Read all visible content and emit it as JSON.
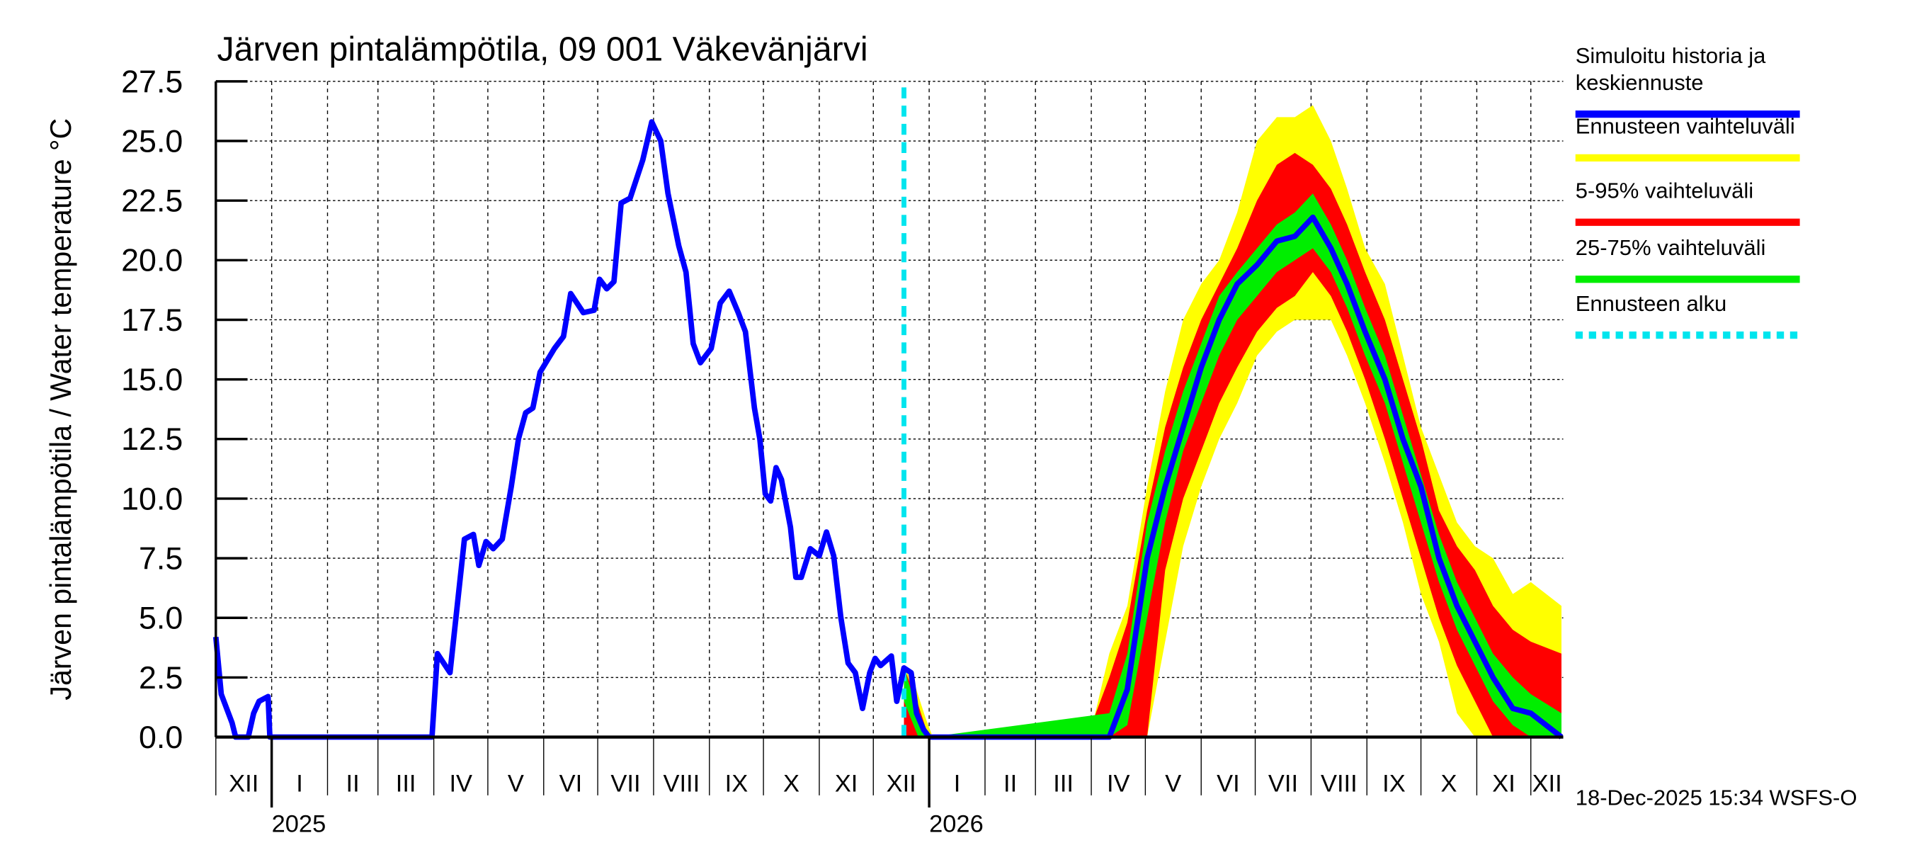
{
  "chart_data": {
    "type": "area",
    "title": "Järven pintalämpötila, 09 001 Väkevänjärvi",
    "ylabel": "Järven pintalämpötila / Water temperature °C",
    "xlabel": "",
    "x_unit": "days since 2024-12-01",
    "xlim": [
      0,
      748
    ],
    "ylim": [
      0,
      27.5
    ],
    "yticks": [
      "0.0",
      "2.5",
      "5.0",
      "7.5",
      "10.0",
      "12.5",
      "15.0",
      "17.5",
      "20.0",
      "22.5",
      "25.0",
      "27.5"
    ],
    "grid": true,
    "months": [
      "XII",
      "I",
      "II",
      "III",
      "IV",
      "V",
      "VI",
      "VII",
      "VIII",
      "IX",
      "X",
      "XI",
      "XII",
      "I",
      "II",
      "III",
      "IV",
      "V",
      "VI",
      "VII",
      "VIII",
      "IX",
      "X",
      "XI",
      "XII"
    ],
    "years": [
      "2025",
      "2026"
    ],
    "forecast_start_day": 382,
    "legend_position": "right",
    "legend": [
      {
        "label_line1": "Simuloitu historia ja",
        "label_line2": "keskiennuste",
        "color": "#0000ff",
        "style": "solid"
      },
      {
        "label_line1": "Ennusteen vaihteluväli",
        "color": "#ffff00",
        "style": "solid"
      },
      {
        "label_line1": "5-95% vaihteluväli",
        "color": "#ff0000",
        "style": "solid"
      },
      {
        "label_line1": "25-75% vaihteluväli",
        "color": "#00ee00",
        "style": "solid"
      },
      {
        "label_line1": "Ennusteen alku",
        "color": "#00e5ee",
        "style": "dotted"
      }
    ],
    "history": [
      [
        0,
        4.2
      ],
      [
        3,
        1.8
      ],
      [
        9,
        0.6
      ],
      [
        11,
        0
      ],
      [
        18,
        0
      ],
      [
        21,
        1
      ],
      [
        24,
        1.5
      ],
      [
        29,
        1.7
      ],
      [
        30,
        0
      ],
      [
        120,
        0
      ],
      [
        123,
        3.5
      ],
      [
        130,
        2.7
      ],
      [
        138,
        8.3
      ],
      [
        143,
        8.5
      ],
      [
        146,
        7.2
      ],
      [
        150,
        8.2
      ],
      [
        154,
        7.9
      ],
      [
        159,
        8.3
      ],
      [
        164,
        10.5
      ],
      [
        168,
        12.5
      ],
      [
        172,
        13.6
      ],
      [
        176,
        13.8
      ],
      [
        180,
        15.3
      ],
      [
        188,
        16.3
      ],
      [
        193,
        16.8
      ],
      [
        197,
        18.6
      ],
      [
        204,
        17.8
      ],
      [
        210,
        17.9
      ],
      [
        213,
        19.2
      ],
      [
        217,
        18.8
      ],
      [
        221,
        19.1
      ],
      [
        225,
        22.4
      ],
      [
        230,
        22.6
      ],
      [
        237,
        24.2
      ],
      [
        242,
        25.8
      ],
      [
        247,
        25
      ],
      [
        251,
        22.8
      ],
      [
        257,
        20.6
      ],
      [
        261,
        19.5
      ],
      [
        265,
        16.5
      ],
      [
        269,
        15.7
      ],
      [
        275,
        16.3
      ],
      [
        280,
        18.2
      ],
      [
        285,
        18.7
      ],
      [
        290,
        17.8
      ],
      [
        294,
        17
      ],
      [
        299,
        13.8
      ],
      [
        302,
        12.5
      ],
      [
        305,
        10.2
      ],
      [
        308,
        9.9
      ],
      [
        311,
        11.3
      ],
      [
        314,
        10.8
      ],
      [
        319,
        8.8
      ],
      [
        322,
        6.7
      ],
      [
        325,
        6.7
      ],
      [
        330,
        7.9
      ],
      [
        335,
        7.6
      ],
      [
        339,
        8.6
      ],
      [
        343,
        7.6
      ],
      [
        347,
        5.0
      ],
      [
        351,
        3.1
      ],
      [
        355,
        2.7
      ],
      [
        359,
        1.2
      ],
      [
        363,
        2.7
      ],
      [
        366,
        3.3
      ],
      [
        369,
        3.0
      ],
      [
        375,
        3.4
      ],
      [
        378,
        1.5
      ],
      [
        382,
        2.9
      ],
      [
        386,
        2.7
      ],
      [
        389,
        1.0
      ],
      [
        393,
        0.3
      ],
      [
        396,
        0
      ]
    ],
    "median": [
      [
        396,
        0
      ],
      [
        496,
        0
      ],
      [
        506,
        2
      ],
      [
        517,
        7.5
      ],
      [
        527,
        10.5
      ],
      [
        537,
        13
      ],
      [
        547,
        15.5
      ],
      [
        557,
        17.5
      ],
      [
        567,
        19
      ],
      [
        578,
        19.8
      ],
      [
        589,
        20.8
      ],
      [
        599,
        21
      ],
      [
        609,
        21.8
      ],
      [
        619,
        20.5
      ],
      [
        628,
        19
      ],
      [
        638,
        17
      ],
      [
        649,
        15
      ],
      [
        659,
        12.5
      ],
      [
        669,
        10.5
      ],
      [
        679,
        7.5
      ],
      [
        689,
        5.5
      ],
      [
        699,
        4
      ],
      [
        709,
        2.5
      ],
      [
        720,
        1.2
      ],
      [
        730,
        1
      ],
      [
        747,
        0
      ]
    ],
    "band_min_max": [
      [
        382,
        0,
        2.9
      ],
      [
        388,
        0,
        2.2
      ],
      [
        394,
        0,
        0.8
      ],
      [
        398,
        0,
        0
      ],
      [
        486,
        0,
        0.3
      ],
      [
        496,
        0,
        3.5
      ],
      [
        506,
        0,
        5.5
      ],
      [
        517,
        0,
        10.5
      ],
      [
        527,
        4,
        14.5
      ],
      [
        537,
        8,
        17.5
      ],
      [
        547,
        10.5,
        19
      ],
      [
        557,
        12.5,
        20
      ],
      [
        567,
        14,
        22
      ],
      [
        578,
        16,
        25
      ],
      [
        589,
        17,
        26
      ],
      [
        599,
        17.5,
        26
      ],
      [
        609,
        17.5,
        26.5
      ],
      [
        619,
        17.5,
        25
      ],
      [
        628,
        16,
        23
      ],
      [
        638,
        14,
        20.5
      ],
      [
        649,
        11.5,
        19
      ],
      [
        659,
        9,
        16
      ],
      [
        669,
        6,
        13
      ],
      [
        679,
        4,
        11
      ],
      [
        689,
        1,
        9
      ],
      [
        699,
        0,
        8
      ],
      [
        709,
        0,
        7.5
      ],
      [
        720,
        0,
        6
      ],
      [
        730,
        0,
        6.5
      ],
      [
        747,
        0,
        5.5
      ]
    ],
    "band_5_95": [
      [
        382,
        0,
        2.9
      ],
      [
        388,
        0,
        1.8
      ],
      [
        394,
        0,
        0.4
      ],
      [
        396,
        0,
        0
      ],
      [
        486,
        0,
        0.5
      ],
      [
        496,
        0,
        2.5
      ],
      [
        506,
        0,
        4.8
      ],
      [
        517,
        0,
        9.5
      ],
      [
        527,
        7,
        13
      ],
      [
        537,
        10,
        15.5
      ],
      [
        547,
        12,
        17.5
      ],
      [
        557,
        14,
        19
      ],
      [
        567,
        15.5,
        20.5
      ],
      [
        578,
        17,
        22.5
      ],
      [
        589,
        18,
        24
      ],
      [
        599,
        18.5,
        24.5
      ],
      [
        609,
        19.5,
        24
      ],
      [
        619,
        18.5,
        23
      ],
      [
        628,
        17,
        21.5
      ],
      [
        638,
        15,
        19.5
      ],
      [
        649,
        12.5,
        17.5
      ],
      [
        659,
        10,
        15
      ],
      [
        669,
        7.5,
        12.5
      ],
      [
        679,
        5,
        9.5
      ],
      [
        689,
        3,
        8
      ],
      [
        699,
        1.5,
        7
      ],
      [
        709,
        0,
        5.5
      ],
      [
        720,
        0,
        4.5
      ],
      [
        730,
        0,
        4
      ],
      [
        747,
        0,
        3.5
      ]
    ],
    "band_25_75": [
      [
        382,
        1.5,
        2.9
      ],
      [
        390,
        0,
        1
      ],
      [
        396,
        0,
        0
      ],
      [
        496,
        0,
        1.0
      ],
      [
        506,
        0.5,
        3.5
      ],
      [
        517,
        5,
        9
      ],
      [
        527,
        9,
        12
      ],
      [
        537,
        12,
        14.5
      ],
      [
        547,
        14,
        16.5
      ],
      [
        557,
        16,
        18.5
      ],
      [
        567,
        17.5,
        19.5
      ],
      [
        578,
        18.5,
        20.5
      ],
      [
        589,
        19.5,
        21.5
      ],
      [
        599,
        20,
        22
      ],
      [
        609,
        20.5,
        22.8
      ],
      [
        619,
        19.5,
        21.5
      ],
      [
        628,
        18,
        20
      ],
      [
        638,
        16,
        18
      ],
      [
        649,
        14,
        16
      ],
      [
        659,
        11.5,
        13.5
      ],
      [
        669,
        9,
        11
      ],
      [
        679,
        6.5,
        8.5
      ],
      [
        689,
        4.5,
        6.5
      ],
      [
        699,
        3,
        5
      ],
      [
        709,
        1.5,
        3.5
      ],
      [
        720,
        0.5,
        2.5
      ],
      [
        730,
        0,
        1.8
      ],
      [
        747,
        0,
        1
      ]
    ]
  },
  "footer": {
    "timestamp": "18-Dec-2025 15:34 WSFS-O"
  }
}
